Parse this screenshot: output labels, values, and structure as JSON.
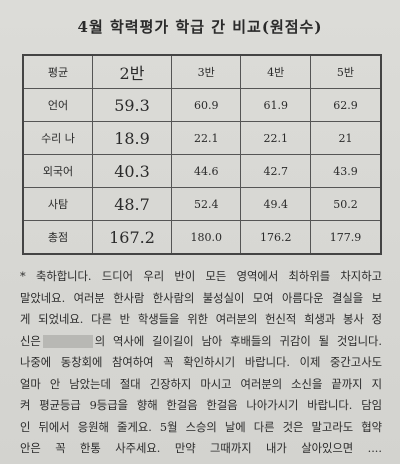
{
  "title": "4월 학력평가 학급 간 비교(원점수)",
  "table": {
    "header": [
      "평균",
      "2반",
      "3반",
      "4반",
      "5반"
    ],
    "rows": [
      [
        "언어",
        "59.3",
        "60.9",
        "61.9",
        "62.9"
      ],
      [
        "수리 나",
        "18.9",
        "22.1",
        "22.1",
        "21"
      ],
      [
        "외국어",
        "40.3",
        "44.6",
        "42.7",
        "43.9"
      ],
      [
        "사탐",
        "48.7",
        "52.4",
        "49.4",
        "50.2"
      ],
      [
        "총점",
        "167.2",
        "180.0",
        "176.2",
        "177.9"
      ]
    ]
  },
  "body": {
    "lines": [
      [
        "* 축하합니다. 드디어 우리 반이 모든 영역에서 최하위를 차지하고"
      ],
      [
        "말았네요. 여러분 한사람 한사람의 불성실이 모여 아름다운 결실을 보"
      ],
      [
        "게 되었네요. 다른 반 학생들을 위한 여러분의 헌신적 희생과 봉사 정"
      ],
      [
        "신은",
        "의 역사에 길이길이 남아 후배들의 귀감이 될 것입니다."
      ],
      [
        "나중에 동창회에 참여하여 꼭 확인하시기 바랍니다. 이제 중간고사도"
      ],
      [
        "얼마 안 남았는데 절대 긴장하지 마시고 여러분의 소신을 끝까지 지"
      ],
      [
        "켜 평균등급 9등급을 향해 한걸음 한걸음 나아가시기 바랍니다. 담임"
      ],
      [
        "인 뒤에서 응원해 줄게요. 5월 스승의 날에 다른 것은 말고라도 협약"
      ],
      [
        "안은 꼭 한통 사주세요. 만약 그때까지 내가 살아있으면 ...."
      ]
    ]
  }
}
